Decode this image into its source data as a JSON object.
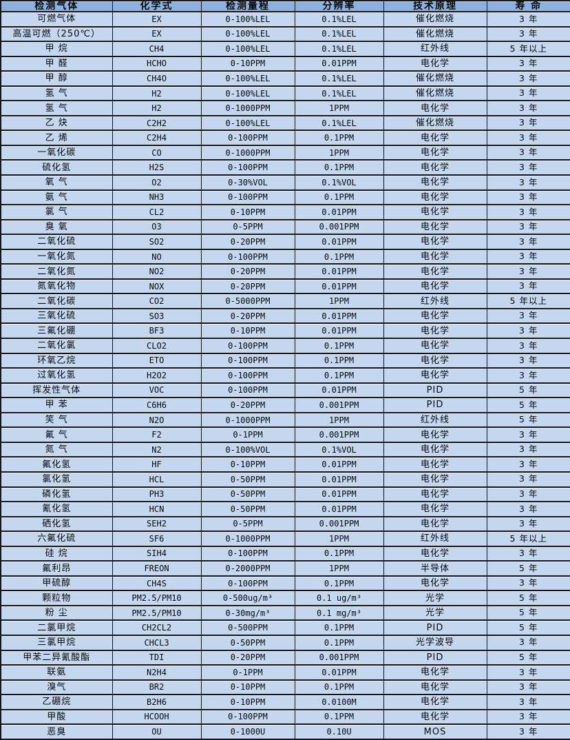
{
  "table": {
    "columns": [
      "检测气体",
      "化学式",
      "检测量程",
      "分辨率",
      "技术原理",
      "寿 命"
    ],
    "rows": [
      [
        "可燃气体",
        "EX",
        "0-100%LEL",
        "0.1%LEL",
        "催化燃烧",
        "3 年"
      ],
      [
        "高温可燃（250℃）",
        "EX",
        "0-100%LEL",
        "0.1%LEL",
        "催化燃烧",
        "3 年"
      ],
      [
        "甲 烷",
        "CH4",
        "0-100%LEL",
        "0.1%LEL",
        "红外线",
        "5 年以上"
      ],
      [
        "甲 醛",
        "HCHO",
        "0-10PPM",
        "0.01PPM",
        "电化学",
        "3 年"
      ],
      [
        "甲 醇",
        "CH4O",
        "0-100%LEL",
        "0.1%LEL",
        "催化燃烧",
        "3 年"
      ],
      [
        "氢 气",
        "H2",
        "0-100%LEL",
        "0.1%LEL",
        "催化燃烧",
        "3 年"
      ],
      [
        "氢 气",
        "H2",
        "0-1000PPM",
        "1PPM",
        "电化学",
        "3 年"
      ],
      [
        "乙 炔",
        "C2H2",
        "0-100%LEL",
        "0.1%LEL",
        "催化燃烧",
        "3 年"
      ],
      [
        "乙 烯",
        "C2H4",
        "0-100PPM",
        "0.1PPM",
        "电化学",
        "3 年"
      ],
      [
        "一氧化碳",
        "CO",
        "0-1000PPM",
        "1PPM",
        "电化学",
        "3 年"
      ],
      [
        "硫化氢",
        "H2S",
        "0-100PPM",
        "0.1PPM",
        "电化学",
        "3 年"
      ],
      [
        "氧 气",
        "O2",
        "0-30%VOL",
        "0.1%VOL",
        "电化学",
        "3 年"
      ],
      [
        "氨 气",
        "NH3",
        "0-100PPM",
        "0.1PPM",
        "电化学",
        "3 年"
      ],
      [
        "氯 气",
        "CL2",
        "0-10PPM",
        "0.01PPM",
        "电化学",
        "3 年"
      ],
      [
        "臭 氧",
        "O3",
        "0-5PPM",
        "0.001PPM",
        "电化学",
        "3 年"
      ],
      [
        "二氧化硫",
        "SO2",
        "0-20PPM",
        "0.01PPM",
        "电化学",
        "3 年"
      ],
      [
        "一氧化氮",
        "NO",
        "0-100PPM",
        "0.1PPM",
        "电化学",
        "3 年"
      ],
      [
        "二氧化氮",
        "NO2",
        "0-20PPM",
        "0.01PPM",
        "电化学",
        "3 年"
      ],
      [
        "氮氧化物",
        "NOX",
        "0-20PPM",
        "0.01PPM",
        "电化学",
        "3 年"
      ],
      [
        "二氧化碳",
        "CO2",
        "0-5000PPM",
        "1PPM",
        "红外线",
        "5 年以上"
      ],
      [
        "三氧化硫",
        "SO3",
        "0-20PPM",
        "0.01PPM",
        "电化学",
        "3 年"
      ],
      [
        "三氟化硼",
        "BF3",
        "0-10PPM",
        "0.01PPM",
        "电化学",
        "3 年"
      ],
      [
        "二氧化氯",
        "CLO2",
        "0-100PPM",
        "0.1PPM",
        "电化学",
        "3 年"
      ],
      [
        "环氧乙烷",
        "ETO",
        "0-100PPM",
        "0.1PPM",
        "电化学",
        "3 年"
      ],
      [
        "过氧化氢",
        "H2O2",
        "0-100PPM",
        "0.1PPM",
        "电化学",
        "3 年"
      ],
      [
        "挥发性气体",
        "VOC",
        "0-100PPM",
        "0.01PPM",
        "PID",
        "5 年"
      ],
      [
        "甲 苯",
        "C6H6",
        "0-20PPM",
        "0.001PPM",
        "PID",
        "5 年"
      ],
      [
        "笑 气",
        "N2O",
        "0-1000PPM",
        "1PPM",
        "红外线",
        "5 年"
      ],
      [
        "氟 气",
        "F2",
        "0-1PPM",
        "0.001PPM",
        "电化学",
        "3 年"
      ],
      [
        "氮 气",
        "N2",
        "0-100%VOL",
        "0.1%VOL",
        "电化学",
        "3 年"
      ],
      [
        "氟化氢",
        "HF",
        "0-10PPM",
        "0.01PPM",
        "电化学",
        "3 年"
      ],
      [
        "氯化氢",
        "HCL",
        "0-50PPM",
        "0.01PPM",
        "电化学",
        "3 年"
      ],
      [
        "磷化氢",
        "PH3",
        "0-50PPM",
        "0.01PPM",
        "电化学",
        "3 年"
      ],
      [
        "氰化氢",
        "HCN",
        "0-50PPM",
        "0.01PPM",
        "电化学",
        "3 年"
      ],
      [
        "硒化氢",
        "SEH2",
        "0-5PPM",
        "0.001PPM",
        "电化学",
        "3 年"
      ],
      [
        "六氟化硫",
        "SF6",
        "0-1000PPM",
        "1PPM",
        "红外线",
        "5 年以上"
      ],
      [
        "硅 烷",
        "SIH4",
        "0-100PPM",
        "0.1PPM",
        "电化学",
        "3 年"
      ],
      [
        "氟利昂",
        "FREON",
        "0-2000PPM",
        "1PPM",
        "半导体",
        "5 年"
      ],
      [
        "甲硫醇",
        "CH4S",
        "0-100PPM",
        "0.1PPM",
        "电化学",
        "3 年"
      ],
      [
        "颗粒物",
        "PM2.5/PM10",
        "0-500ug/m³",
        "0.1 ug/m³",
        "光学",
        "5 年"
      ],
      [
        "粉 尘",
        "PM2.5/PM10",
        "0-30mg/m³",
        "0.1 mg/m³",
        "光学",
        "5 年"
      ],
      [
        "二氯甲烷",
        "CH2CL2",
        "0-500PPM",
        "0.1PPM",
        "PID",
        "5 年"
      ],
      [
        "三氯甲烷",
        "CHCL3",
        "0-50PPM",
        "0.1PPM",
        "光学波导",
        "3 年"
      ],
      [
        "甲苯二异氰酸酯",
        "TDI",
        "0-20PPM",
        "0.001PPM",
        "PID",
        "5 年"
      ],
      [
        "联氨",
        "N2H4",
        "0-1PPM",
        "0.01PPM",
        "电化学",
        "3 年"
      ],
      [
        "溴气",
        "BR2",
        "0-10PPM",
        "0.1PPM",
        "电化学",
        "3 年"
      ],
      [
        "乙硼烷",
        "B2H6",
        "0-10PPM",
        "0.0100M",
        "电化学",
        "3 年"
      ],
      [
        "甲酸",
        "HCOOH",
        "0-100PPM",
        "0.1PPM",
        "电化学",
        "3 年"
      ],
      [
        "恶臭",
        "OU",
        "0-1000U",
        "0.10U",
        "MOS",
        "3 年"
      ]
    ]
  },
  "colors": {
    "header_bg": "#8db1df",
    "cell_bg": "#c5d7ee",
    "border": "#14161a",
    "text": "#07090d"
  }
}
